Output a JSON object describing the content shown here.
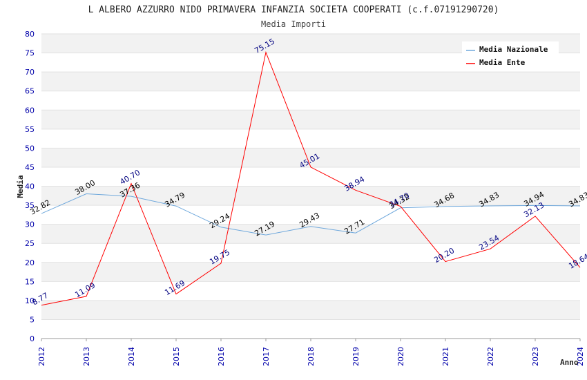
{
  "chart_data": {
    "type": "line",
    "title": "L ALBERO AZZURRO NIDO PRIMAVERA INFANZIA SOCIETA COOPERATI (c.f.07191290720)",
    "subtitle": "Media Importi",
    "xlabel": "Anno",
    "ylabel": "Media",
    "categories": [
      "2012",
      "2013",
      "2014",
      "2015",
      "2016",
      "2017",
      "2018",
      "2019",
      "2020",
      "2021",
      "2022",
      "2023",
      "2024"
    ],
    "ylim": [
      0,
      80
    ],
    "yticks": [
      "0",
      "5",
      "10",
      "15",
      "20",
      "25",
      "30",
      "35",
      "40",
      "45",
      "50",
      "55",
      "60",
      "65",
      "70",
      "75",
      "80"
    ],
    "grid": true,
    "legend_position": "top-right",
    "series": [
      {
        "name": "Media Nazionale",
        "color": "#6fa8dc",
        "label_color": "#000000",
        "values": [
          32.82,
          38.0,
          37.36,
          34.79,
          29.24,
          27.19,
          29.43,
          27.71,
          34.32,
          34.68,
          34.83,
          34.94,
          34.83
        ],
        "labels": [
          "32.82",
          "38.00",
          "37.36",
          "34.79",
          "29.24",
          "27.19",
          "29.43",
          "27.71",
          "34.32",
          "34.68",
          "34.83",
          "34.94",
          "34.83"
        ]
      },
      {
        "name": "Media Ente",
        "color": "#ff0000",
        "label_color": "#000080",
        "values": [
          8.77,
          11.09,
          40.7,
          11.69,
          19.75,
          75.15,
          45.01,
          38.94,
          34.7,
          20.2,
          23.54,
          32.13,
          18.64
        ],
        "labels": [
          "8.77",
          "11.09",
          "40.70",
          "11.69",
          "19.75",
          "75.15",
          "45.01",
          "38.94",
          "34.70",
          "20.20",
          "23.54",
          "32.13",
          "18.64"
        ]
      }
    ]
  }
}
